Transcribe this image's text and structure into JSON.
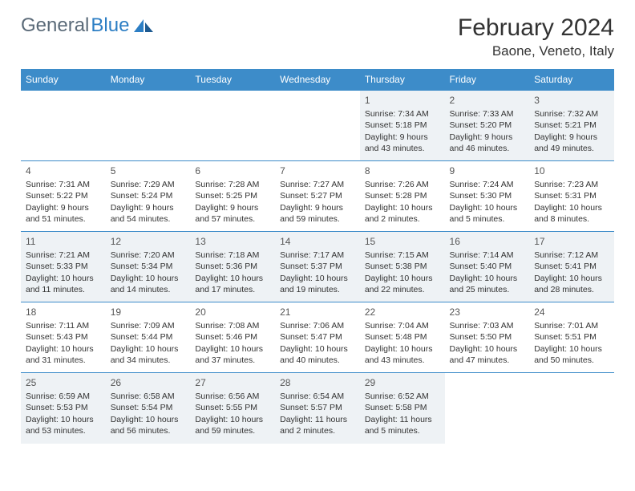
{
  "logo": {
    "text1": "General",
    "text2": "Blue"
  },
  "title": "February 2024",
  "location": "Baone, Veneto, Italy",
  "colors": {
    "header_bg": "#3d8cc9",
    "header_text": "#ffffff",
    "row_border": "#3d8cc9",
    "alt_row_bg": "#eef2f5",
    "body_text": "#333333",
    "logo_gray": "#5a6a78",
    "logo_blue": "#2c7ec4"
  },
  "weekdays": [
    "Sunday",
    "Monday",
    "Tuesday",
    "Wednesday",
    "Thursday",
    "Friday",
    "Saturday"
  ],
  "weeks": [
    [
      null,
      null,
      null,
      null,
      {
        "n": "1",
        "sr": "Sunrise: 7:34 AM",
        "ss": "Sunset: 5:18 PM",
        "dl1": "Daylight: 9 hours",
        "dl2": "and 43 minutes."
      },
      {
        "n": "2",
        "sr": "Sunrise: 7:33 AM",
        "ss": "Sunset: 5:20 PM",
        "dl1": "Daylight: 9 hours",
        "dl2": "and 46 minutes."
      },
      {
        "n": "3",
        "sr": "Sunrise: 7:32 AM",
        "ss": "Sunset: 5:21 PM",
        "dl1": "Daylight: 9 hours",
        "dl2": "and 49 minutes."
      }
    ],
    [
      {
        "n": "4",
        "sr": "Sunrise: 7:31 AM",
        "ss": "Sunset: 5:22 PM",
        "dl1": "Daylight: 9 hours",
        "dl2": "and 51 minutes."
      },
      {
        "n": "5",
        "sr": "Sunrise: 7:29 AM",
        "ss": "Sunset: 5:24 PM",
        "dl1": "Daylight: 9 hours",
        "dl2": "and 54 minutes."
      },
      {
        "n": "6",
        "sr": "Sunrise: 7:28 AM",
        "ss": "Sunset: 5:25 PM",
        "dl1": "Daylight: 9 hours",
        "dl2": "and 57 minutes."
      },
      {
        "n": "7",
        "sr": "Sunrise: 7:27 AM",
        "ss": "Sunset: 5:27 PM",
        "dl1": "Daylight: 9 hours",
        "dl2": "and 59 minutes."
      },
      {
        "n": "8",
        "sr": "Sunrise: 7:26 AM",
        "ss": "Sunset: 5:28 PM",
        "dl1": "Daylight: 10 hours",
        "dl2": "and 2 minutes."
      },
      {
        "n": "9",
        "sr": "Sunrise: 7:24 AM",
        "ss": "Sunset: 5:30 PM",
        "dl1": "Daylight: 10 hours",
        "dl2": "and 5 minutes."
      },
      {
        "n": "10",
        "sr": "Sunrise: 7:23 AM",
        "ss": "Sunset: 5:31 PM",
        "dl1": "Daylight: 10 hours",
        "dl2": "and 8 minutes."
      }
    ],
    [
      {
        "n": "11",
        "sr": "Sunrise: 7:21 AM",
        "ss": "Sunset: 5:33 PM",
        "dl1": "Daylight: 10 hours",
        "dl2": "and 11 minutes."
      },
      {
        "n": "12",
        "sr": "Sunrise: 7:20 AM",
        "ss": "Sunset: 5:34 PM",
        "dl1": "Daylight: 10 hours",
        "dl2": "and 14 minutes."
      },
      {
        "n": "13",
        "sr": "Sunrise: 7:18 AM",
        "ss": "Sunset: 5:36 PM",
        "dl1": "Daylight: 10 hours",
        "dl2": "and 17 minutes."
      },
      {
        "n": "14",
        "sr": "Sunrise: 7:17 AM",
        "ss": "Sunset: 5:37 PM",
        "dl1": "Daylight: 10 hours",
        "dl2": "and 19 minutes."
      },
      {
        "n": "15",
        "sr": "Sunrise: 7:15 AM",
        "ss": "Sunset: 5:38 PM",
        "dl1": "Daylight: 10 hours",
        "dl2": "and 22 minutes."
      },
      {
        "n": "16",
        "sr": "Sunrise: 7:14 AM",
        "ss": "Sunset: 5:40 PM",
        "dl1": "Daylight: 10 hours",
        "dl2": "and 25 minutes."
      },
      {
        "n": "17",
        "sr": "Sunrise: 7:12 AM",
        "ss": "Sunset: 5:41 PM",
        "dl1": "Daylight: 10 hours",
        "dl2": "and 28 minutes."
      }
    ],
    [
      {
        "n": "18",
        "sr": "Sunrise: 7:11 AM",
        "ss": "Sunset: 5:43 PM",
        "dl1": "Daylight: 10 hours",
        "dl2": "and 31 minutes."
      },
      {
        "n": "19",
        "sr": "Sunrise: 7:09 AM",
        "ss": "Sunset: 5:44 PM",
        "dl1": "Daylight: 10 hours",
        "dl2": "and 34 minutes."
      },
      {
        "n": "20",
        "sr": "Sunrise: 7:08 AM",
        "ss": "Sunset: 5:46 PM",
        "dl1": "Daylight: 10 hours",
        "dl2": "and 37 minutes."
      },
      {
        "n": "21",
        "sr": "Sunrise: 7:06 AM",
        "ss": "Sunset: 5:47 PM",
        "dl1": "Daylight: 10 hours",
        "dl2": "and 40 minutes."
      },
      {
        "n": "22",
        "sr": "Sunrise: 7:04 AM",
        "ss": "Sunset: 5:48 PM",
        "dl1": "Daylight: 10 hours",
        "dl2": "and 43 minutes."
      },
      {
        "n": "23",
        "sr": "Sunrise: 7:03 AM",
        "ss": "Sunset: 5:50 PM",
        "dl1": "Daylight: 10 hours",
        "dl2": "and 47 minutes."
      },
      {
        "n": "24",
        "sr": "Sunrise: 7:01 AM",
        "ss": "Sunset: 5:51 PM",
        "dl1": "Daylight: 10 hours",
        "dl2": "and 50 minutes."
      }
    ],
    [
      {
        "n": "25",
        "sr": "Sunrise: 6:59 AM",
        "ss": "Sunset: 5:53 PM",
        "dl1": "Daylight: 10 hours",
        "dl2": "and 53 minutes."
      },
      {
        "n": "26",
        "sr": "Sunrise: 6:58 AM",
        "ss": "Sunset: 5:54 PM",
        "dl1": "Daylight: 10 hours",
        "dl2": "and 56 minutes."
      },
      {
        "n": "27",
        "sr": "Sunrise: 6:56 AM",
        "ss": "Sunset: 5:55 PM",
        "dl1": "Daylight: 10 hours",
        "dl2": "and 59 minutes."
      },
      {
        "n": "28",
        "sr": "Sunrise: 6:54 AM",
        "ss": "Sunset: 5:57 PM",
        "dl1": "Daylight: 11 hours",
        "dl2": "and 2 minutes."
      },
      {
        "n": "29",
        "sr": "Sunrise: 6:52 AM",
        "ss": "Sunset: 5:58 PM",
        "dl1": "Daylight: 11 hours",
        "dl2": "and 5 minutes."
      },
      null,
      null
    ]
  ]
}
